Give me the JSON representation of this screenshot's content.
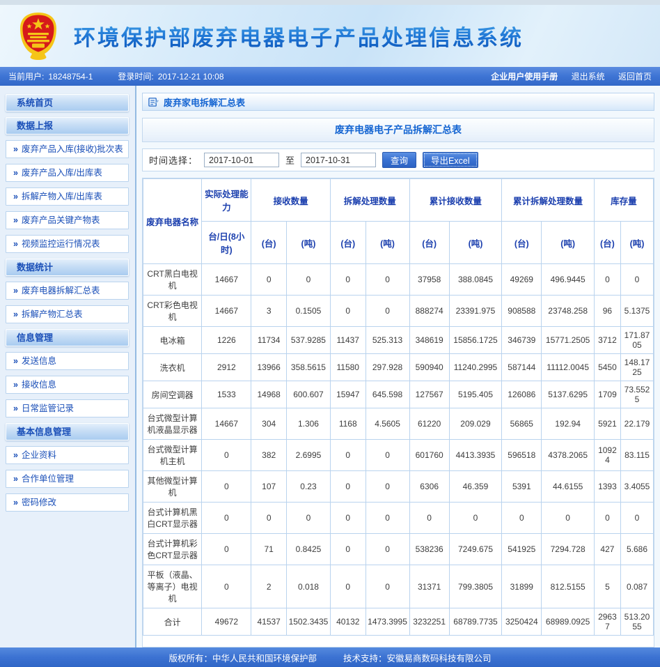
{
  "banner": {
    "title": "环境保护部废弃电器电子产品处理信息系统"
  },
  "userbar": {
    "current_user_label": "当前用户:",
    "current_user": "18248754-1",
    "login_time_label": "登录时间:",
    "login_time": "2017-12-21 10:08",
    "links": [
      "企业用户使用手册",
      "退出系统",
      "返回首页"
    ]
  },
  "sidebar": {
    "item_bullet": "»",
    "sections": [
      {
        "id": "home",
        "title": "系统首页",
        "items": []
      },
      {
        "id": "data-report",
        "title": "数据上报",
        "items": [
          "废弃产品入库(接收)批次表",
          "废弃产品入库/出库表",
          "拆解产物入库/出库表",
          "废弃产品关键产物表",
          "视频监控运行情况表"
        ]
      },
      {
        "id": "data-stats",
        "title": "数据统计",
        "items": [
          "废弃电器拆解汇总表",
          "拆解产物汇总表"
        ]
      },
      {
        "id": "info-mgmt",
        "title": "信息管理",
        "items": [
          "发送信息",
          "接收信息",
          "日常监管记录"
        ]
      },
      {
        "id": "basic-info",
        "title": "基本信息管理",
        "items": [
          "企业资料",
          "合作单位管理",
          "密码修改"
        ]
      }
    ]
  },
  "main": {
    "breadcrumb": "废弃家电拆解汇总表",
    "table_title": "废弃电器电子产品拆解汇总表",
    "filter": {
      "label": "时间选择：",
      "date_from": "2017-10-01",
      "to_label": "至",
      "date_to": "2017-10-31",
      "query_button": "查询",
      "export_button": "导出Excel"
    }
  },
  "table": {
    "header": {
      "name": "废弃电器名称",
      "groups": [
        {
          "label": "实际处理能力",
          "subs": [
            "台/日(8小时)"
          ]
        },
        {
          "label": "接收数量",
          "subs": [
            "(台)",
            "(吨)"
          ]
        },
        {
          "label": "拆解处理数量",
          "subs": [
            "(台)",
            "(吨)"
          ]
        },
        {
          "label": "累计接收数量",
          "subs": [
            "(台)",
            "(吨)"
          ]
        },
        {
          "label": "累计拆解处理数量",
          "subs": [
            "(台)",
            "(吨)"
          ]
        },
        {
          "label": "库存量",
          "subs": [
            "(台)",
            "(吨)"
          ]
        }
      ]
    },
    "rows": [
      {
        "name": "CRT黑白电视机",
        "values": [
          "14667",
          "0",
          "0",
          "0",
          "0",
          "37958",
          "388.0845",
          "49269",
          "496.9445",
          "0",
          "0"
        ]
      },
      {
        "name": "CRT彩色电视机",
        "values": [
          "14667",
          "3",
          "0.1505",
          "0",
          "0",
          "888274",
          "23391.975",
          "908588",
          "23748.258",
          "96",
          "5.1375"
        ]
      },
      {
        "name": "电冰箱",
        "values": [
          "1226",
          "11734",
          "537.9285",
          "11437",
          "525.313",
          "348619",
          "15856.1725",
          "346739",
          "15771.2505",
          "3712",
          "171.8705"
        ]
      },
      {
        "name": "洗衣机",
        "values": [
          "2912",
          "13966",
          "358.5615",
          "11580",
          "297.928",
          "590940",
          "11240.2995",
          "587144",
          "11112.0045",
          "5450",
          "148.1725"
        ]
      },
      {
        "name": "房间空调器",
        "values": [
          "1533",
          "14968",
          "600.607",
          "15947",
          "645.598",
          "127567",
          "5195.405",
          "126086",
          "5137.6295",
          "1709",
          "73.5525"
        ]
      },
      {
        "name": "台式微型计算机液晶显示器",
        "values": [
          "14667",
          "304",
          "1.306",
          "1168",
          "4.5605",
          "61220",
          "209.029",
          "56865",
          "192.94",
          "5921",
          "22.179"
        ]
      },
      {
        "name": "台式微型计算机主机",
        "values": [
          "0",
          "382",
          "2.6995",
          "0",
          "0",
          "601760",
          "4413.3935",
          "596518",
          "4378.2065",
          "10924",
          "83.115"
        ]
      },
      {
        "name": "其他微型计算机",
        "values": [
          "0",
          "107",
          "0.23",
          "0",
          "0",
          "6306",
          "46.359",
          "5391",
          "44.6155",
          "1393",
          "3.4055"
        ]
      },
      {
        "name": "台式计算机黑白CRT显示器",
        "values": [
          "0",
          "0",
          "0",
          "0",
          "0",
          "0",
          "0",
          "0",
          "0",
          "0",
          "0"
        ]
      },
      {
        "name": "台式计算机彩色CRT显示器",
        "values": [
          "0",
          "71",
          "0.8425",
          "0",
          "0",
          "538236",
          "7249.675",
          "541925",
          "7294.728",
          "427",
          "5.686"
        ]
      },
      {
        "name": "平板（液晶、等离子）电视机",
        "values": [
          "0",
          "2",
          "0.018",
          "0",
          "0",
          "31371",
          "799.3805",
          "31899",
          "812.5155",
          "5",
          "0.087"
        ]
      },
      {
        "name": "合计",
        "total": true,
        "values": [
          "49672",
          "41537",
          "1502.3435",
          "40132",
          "1473.3995",
          "3232251",
          "68789.7735",
          "3250424",
          "68989.0925",
          "29637",
          "513.2055"
        ]
      }
    ]
  },
  "footer": {
    "copyright": "版权所有：中华人民共和国环境保护部",
    "support": "技术支持：安徽易商数码科技有限公司"
  },
  "colors": {
    "accent_blue": "#3c72d2",
    "title_blue": "#1565d2",
    "link_blue": "#1a4fb8",
    "table_border": "#b9d3ee",
    "emblem_red": "#d61a1a",
    "emblem_gold": "#f5c518"
  }
}
